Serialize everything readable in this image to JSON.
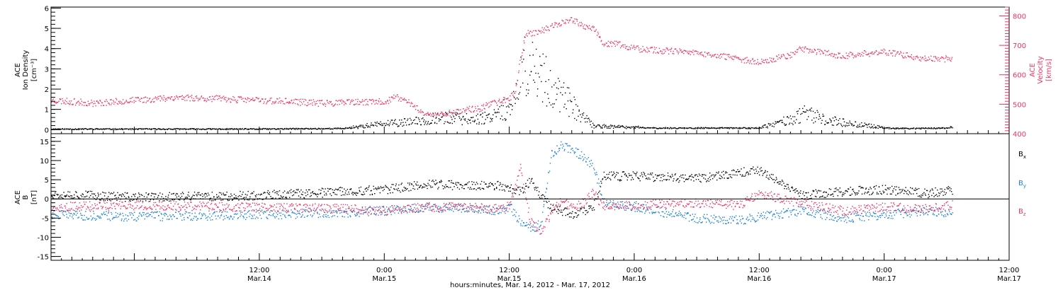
{
  "figure": {
    "xlabel": "hours:minutes, Mar. 14, 2012 - Mar. 17, 2012"
  },
  "colors": {
    "axis": "#000000",
    "density": "#000000",
    "velocity": "#ee3366",
    "bx": "#000000",
    "by": "#1a7fd4",
    "bz": "#ee3366"
  },
  "chart_data": [
    {
      "type": "scatter",
      "panel": "top",
      "xlim": [
        "2012-03-13T16:00",
        "2012-03-17T12:00"
      ],
      "x_ticks": [
        {
          "time": "2012-03-14T12:00",
          "label_top": "12:00",
          "label_bottom": "Mar.14"
        },
        {
          "time": "2012-03-15T00:00",
          "label_top": "0:00",
          "label_bottom": "Mar.15"
        },
        {
          "time": "2012-03-15T12:00",
          "label_top": "12:00",
          "label_bottom": "Mar.15"
        },
        {
          "time": "2012-03-16T00:00",
          "label_top": "0:00",
          "label_bottom": "Mar.16"
        },
        {
          "time": "2012-03-16T12:00",
          "label_top": "12:00",
          "label_bottom": "Mar.16"
        },
        {
          "time": "2012-03-17T00:00",
          "label_top": "0:00",
          "label_bottom": "Mar.17"
        },
        {
          "time": "2012-03-17T12:00",
          "label_top": "12:00",
          "label_bottom": "Mar.17"
        }
      ],
      "left_axis": {
        "label_lines": [
          "ACE",
          "Ion Density",
          "[cm⁻³]"
        ],
        "ylim": [
          -0.2,
          6.05
        ],
        "ticks": [
          0,
          1,
          2,
          3,
          4,
          5,
          6
        ],
        "tick_labels": [
          "0",
          "1",
          "2",
          "3",
          "4",
          "5",
          "6"
        ]
      },
      "right_axis": {
        "label_lines": [
          "ACE",
          "Velocity",
          "[km/s]"
        ],
        "ylim": [
          400,
          830
        ],
        "ticks": [
          400,
          500,
          600,
          700,
          800
        ],
        "tick_labels": [
          "400",
          "500",
          "600",
          "700",
          "800"
        ]
      },
      "series": [
        {
          "key": "density",
          "axis": "left",
          "x": [
            "2012-03-13T16:00",
            "2012-03-14T00:00",
            "2012-03-14T12:00",
            "2012-03-14T20:00",
            "2012-03-14T23:00",
            "2012-03-15T03:00",
            "2012-03-15T05:00",
            "2012-03-15T08:00",
            "2012-03-15T10:00",
            "2012-03-15T11:00",
            "2012-03-15T12:00",
            "2012-03-15T12:40",
            "2012-03-15T13:30",
            "2012-03-15T15:00",
            "2012-03-15T17:00",
            "2012-03-15T19:00",
            "2012-03-15T20:00",
            "2012-03-15T22:00",
            "2012-03-16T02:00",
            "2012-03-16T08:00",
            "2012-03-16T12:00",
            "2012-03-16T15:00",
            "2012-03-16T16:30",
            "2012-03-16T18:00",
            "2012-03-16T20:00",
            "2012-03-17T00:00",
            "2012-03-17T02:00",
            "2012-03-17T06:00",
            "2012-03-17T06:30"
          ],
          "y": [
            0.05,
            0.05,
            0.05,
            0.08,
            0.25,
            0.4,
            0.6,
            0.5,
            0.6,
            1.0,
            0.9,
            1.5,
            3.2,
            2.5,
            1.6,
            0.6,
            0.2,
            0.15,
            0.1,
            0.1,
            0.1,
            0.5,
            0.8,
            0.5,
            0.35,
            0.1,
            0.08,
            0.1,
            0.2
          ]
        },
        {
          "key": "velocity",
          "axis": "right",
          "x": [
            "2012-03-13T16:00",
            "2012-03-13T20:00",
            "2012-03-14T04:00",
            "2012-03-14T12:00",
            "2012-03-14T18:00",
            "2012-03-15T00:00",
            "2012-03-15T01:00",
            "2012-03-15T02:00",
            "2012-03-15T04:00",
            "2012-03-15T06:00",
            "2012-03-15T08:00",
            "2012-03-15T09:00",
            "2012-03-15T10:00",
            "2012-03-15T11:00",
            "2012-03-15T12:00",
            "2012-03-15T12:30",
            "2012-03-15T13:30",
            "2012-03-15T15:00",
            "2012-03-15T17:00",
            "2012-03-15T18:00",
            "2012-03-15T19:00",
            "2012-03-15T19:30",
            "2012-03-15T20:00",
            "2012-03-15T21:00",
            "2012-03-15T22:00",
            "2012-03-16T00:00",
            "2012-03-16T02:00",
            "2012-03-16T06:00",
            "2012-03-16T10:00",
            "2012-03-16T12:00",
            "2012-03-16T15:00",
            "2012-03-16T16:00",
            "2012-03-16T20:00",
            "2012-03-17T00:00",
            "2012-03-17T03:00",
            "2012-03-17T06:30"
          ],
          "y": [
            515,
            505,
            525,
            515,
            505,
            510,
            525,
            515,
            465,
            470,
            485,
            485,
            500,
            510,
            525,
            545,
            740,
            750,
            780,
            790,
            770,
            760,
            760,
            700,
            710,
            690,
            685,
            675,
            655,
            645,
            670,
            690,
            665,
            680,
            660,
            655
          ]
        }
      ]
    },
    {
      "type": "scatter",
      "panel": "bottom",
      "xlim": [
        "2012-03-13T16:00",
        "2012-03-17T12:00"
      ],
      "y_axis": {
        "label_lines": [
          "ACE",
          "B",
          "[nT]"
        ],
        "ylim": [
          -16,
          17
        ],
        "ticks": [
          -15,
          -10,
          -5,
          0,
          5,
          10,
          15
        ],
        "tick_labels": [
          "-15",
          "-10",
          "-5",
          "0",
          "5",
          "10",
          "15"
        ]
      },
      "series": [
        {
          "key": "bx",
          "name": "B",
          "subscript": "x",
          "x": [
            "2012-03-13T16:00",
            "2012-03-14T00:00",
            "2012-03-14T12:00",
            "2012-03-14T20:00",
            "2012-03-15T00:00",
            "2012-03-15T04:00",
            "2012-03-15T08:00",
            "2012-03-15T11:00",
            "2012-03-15T12:00",
            "2012-03-15T13:00",
            "2012-03-15T14:00",
            "2012-03-15T15:00",
            "2012-03-15T16:00",
            "2012-03-15T17:00",
            "2012-03-15T18:00",
            "2012-03-15T19:00",
            "2012-03-15T20:00",
            "2012-03-15T21:00",
            "2012-03-16T00:00",
            "2012-03-16T06:00",
            "2012-03-16T10:00",
            "2012-03-16T12:00",
            "2012-03-16T16:00",
            "2012-03-16T20:00",
            "2012-03-17T00:00",
            "2012-03-17T04:00",
            "2012-03-17T06:30"
          ],
          "y": [
            1.5,
            0.5,
            1.0,
            2.0,
            2.5,
            4.0,
            3.5,
            3.5,
            3.0,
            2.0,
            5.0,
            1.0,
            -2.0,
            -3.0,
            -4.0,
            -3.0,
            -2.5,
            6.0,
            6.0,
            5.5,
            7.0,
            7.5,
            1.0,
            2.0,
            2.5,
            1.5,
            2.5
          ]
        },
        {
          "key": "by",
          "name": "B",
          "subscript": "y",
          "x": [
            "2012-03-13T16:00",
            "2012-03-14T00:00",
            "2012-03-14T12:00",
            "2012-03-14T20:00",
            "2012-03-15T00:00",
            "2012-03-15T04:00",
            "2012-03-15T08:00",
            "2012-03-15T11:00",
            "2012-03-15T12:00",
            "2012-03-15T13:00",
            "2012-03-15T14:00",
            "2012-03-15T15:00",
            "2012-03-15T16:00",
            "2012-03-15T17:00",
            "2012-03-15T18:00",
            "2012-03-15T19:00",
            "2012-03-15T20:00",
            "2012-03-15T21:00",
            "2012-03-16T00:00",
            "2012-03-16T06:00",
            "2012-03-16T10:00",
            "2012-03-16T12:00",
            "2012-03-16T16:00",
            "2012-03-16T20:00",
            "2012-03-17T00:00",
            "2012-03-17T04:00",
            "2012-03-17T06:30"
          ],
          "y": [
            -4.0,
            -4.5,
            -4.0,
            -3.5,
            -3.0,
            -2.0,
            -2.5,
            -3.0,
            -2.0,
            -6.0,
            -8.0,
            -6.0,
            12.0,
            14.0,
            13.0,
            11.0,
            9.0,
            -1.0,
            -2.0,
            -5.0,
            -5.5,
            -4.5,
            -3.0,
            -5.0,
            -4.0,
            -3.0,
            -3.5
          ]
        },
        {
          "key": "bz",
          "name": "B",
          "subscript": "z",
          "x": [
            "2012-03-13T16:00",
            "2012-03-14T00:00",
            "2012-03-14T12:00",
            "2012-03-14T20:00",
            "2012-03-15T00:00",
            "2012-03-15T04:00",
            "2012-03-15T08:00",
            "2012-03-15T11:00",
            "2012-03-15T12:00",
            "2012-03-15T13:00",
            "2012-03-15T14:00",
            "2012-03-15T15:00",
            "2012-03-15T16:00",
            "2012-03-15T17:00",
            "2012-03-15T18:00",
            "2012-03-15T19:00",
            "2012-03-15T20:00",
            "2012-03-15T21:00",
            "2012-03-16T00:00",
            "2012-03-16T06:00",
            "2012-03-16T10:00",
            "2012-03-16T12:00",
            "2012-03-16T16:00",
            "2012-03-16T20:00",
            "2012-03-17T00:00",
            "2012-03-17T04:00",
            "2012-03-17T06:30"
          ],
          "y": [
            -2.0,
            -1.5,
            -2.0,
            -2.5,
            -3.0,
            -2.0,
            -2.0,
            -2.5,
            -1.5,
            8.0,
            -6.0,
            -9.0,
            -3.0,
            0.0,
            -2.0,
            -1.0,
            2.0,
            -2.0,
            -1.5,
            -1.0,
            -1.5,
            1.5,
            -1.0,
            -3.0,
            -2.0,
            -2.5,
            -1.5
          ]
        }
      ]
    }
  ]
}
